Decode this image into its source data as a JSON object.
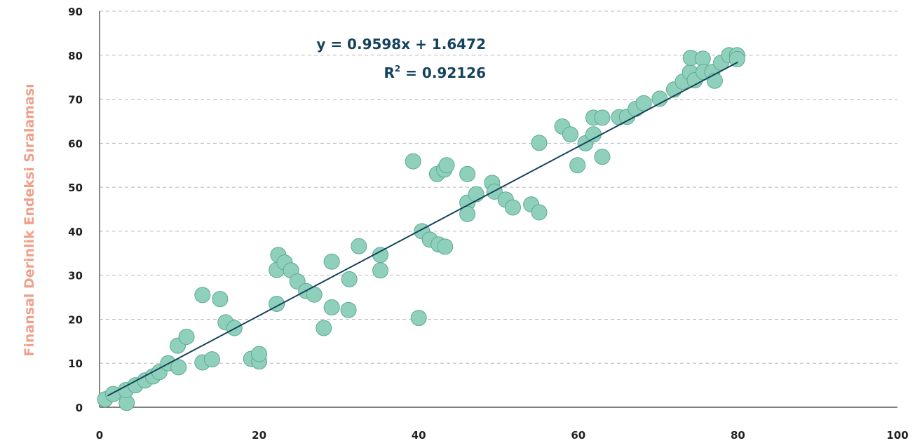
{
  "chart_data": {
    "type": "scatter",
    "title": "",
    "xlabel": "",
    "ylabel": "Finansal Derinlik Endeksi Sıralaması",
    "xlim": [
      0,
      100
    ],
    "ylim": [
      0,
      90
    ],
    "xticks": [
      "0",
      "20",
      "40",
      "60",
      "80",
      "100"
    ],
    "yticks": [
      "0",
      "10",
      "20",
      "30",
      "40",
      "50",
      "60",
      "70",
      "80",
      "90"
    ],
    "grid": "horizontal dashed",
    "colors": {
      "points": "#8fd0bd",
      "point_edge": "#5ea98f",
      "trendline": "#15435d",
      "ylabel": "#f0a08a"
    },
    "trendline": {
      "slope": 0.9598,
      "intercept": 1.6472,
      "x_range": [
        1,
        80
      ]
    },
    "equation": "y = 0.9598x + 1.6472",
    "r2_label": "R",
    "r2_sup": "2",
    "r2_value": " = 0.92126",
    "points": [
      [
        0.7,
        1.8
      ],
      [
        1.7,
        3.0
      ],
      [
        3.4,
        1.0
      ],
      [
        3.3,
        3.9
      ],
      [
        4.5,
        5.0
      ],
      [
        5.7,
        6.1
      ],
      [
        6.7,
        7.0
      ],
      [
        7.5,
        8.0
      ],
      [
        8.6,
        10.0
      ],
      [
        9.9,
        9.1
      ],
      [
        9.8,
        14.0
      ],
      [
        10.9,
        16.0
      ],
      [
        12.9,
        25.5
      ],
      [
        12.9,
        10.2
      ],
      [
        14.1,
        10.9
      ],
      [
        15.1,
        24.6
      ],
      [
        15.8,
        19.3
      ],
      [
        16.9,
        18.0
      ],
      [
        19.0,
        11.0
      ],
      [
        20.0,
        10.4
      ],
      [
        20.0,
        12.1
      ],
      [
        22.2,
        23.5
      ],
      [
        22.2,
        31.2
      ],
      [
        22.4,
        34.6
      ],
      [
        23.2,
        32.9
      ],
      [
        24.0,
        31.1
      ],
      [
        24.8,
        28.6
      ],
      [
        25.9,
        26.4
      ],
      [
        26.9,
        25.6
      ],
      [
        28.1,
        18.0
      ],
      [
        29.1,
        33.1
      ],
      [
        29.1,
        22.7
      ],
      [
        31.2,
        22.1
      ],
      [
        31.3,
        29.1
      ],
      [
        32.5,
        36.6
      ],
      [
        35.2,
        34.6
      ],
      [
        35.2,
        31.1
      ],
      [
        39.3,
        55.9
      ],
      [
        40.0,
        20.3
      ],
      [
        40.4,
        40.0
      ],
      [
        41.4,
        38.1
      ],
      [
        42.3,
        53.0
      ],
      [
        42.5,
        37.0
      ],
      [
        43.2,
        54.0
      ],
      [
        43.5,
        55.0
      ],
      [
        43.3,
        36.5
      ],
      [
        46.1,
        53.0
      ],
      [
        46.1,
        46.5
      ],
      [
        46.1,
        43.9
      ],
      [
        47.2,
        48.4
      ],
      [
        49.2,
        51.0
      ],
      [
        49.5,
        49.0
      ],
      [
        50.9,
        47.2
      ],
      [
        51.8,
        45.4
      ],
      [
        54.1,
        46.1
      ],
      [
        55.1,
        44.3
      ],
      [
        55.1,
        60.1
      ],
      [
        58.0,
        63.8
      ],
      [
        59.0,
        62.0
      ],
      [
        59.9,
        55.0
      ],
      [
        60.9,
        60.0
      ],
      [
        61.9,
        65.8
      ],
      [
        61.9,
        62.0
      ],
      [
        63.0,
        56.9
      ],
      [
        63.0,
        65.8
      ],
      [
        65.1,
        65.9
      ],
      [
        66.1,
        66.0
      ],
      [
        67.2,
        67.8
      ],
      [
        68.2,
        69.1
      ],
      [
        70.2,
        70.1
      ],
      [
        72.0,
        72.2
      ],
      [
        73.1,
        74.0
      ],
      [
        74.0,
        76.1
      ],
      [
        74.1,
        79.4
      ],
      [
        74.6,
        74.3
      ],
      [
        75.6,
        79.2
      ],
      [
        75.7,
        76.2
      ],
      [
        76.8,
        76.2
      ],
      [
        77.1,
        74.2
      ],
      [
        77.9,
        78.3
      ],
      [
        78.9,
        80.0
      ],
      [
        79.9,
        80.0
      ],
      [
        79.9,
        79.1
      ]
    ]
  }
}
